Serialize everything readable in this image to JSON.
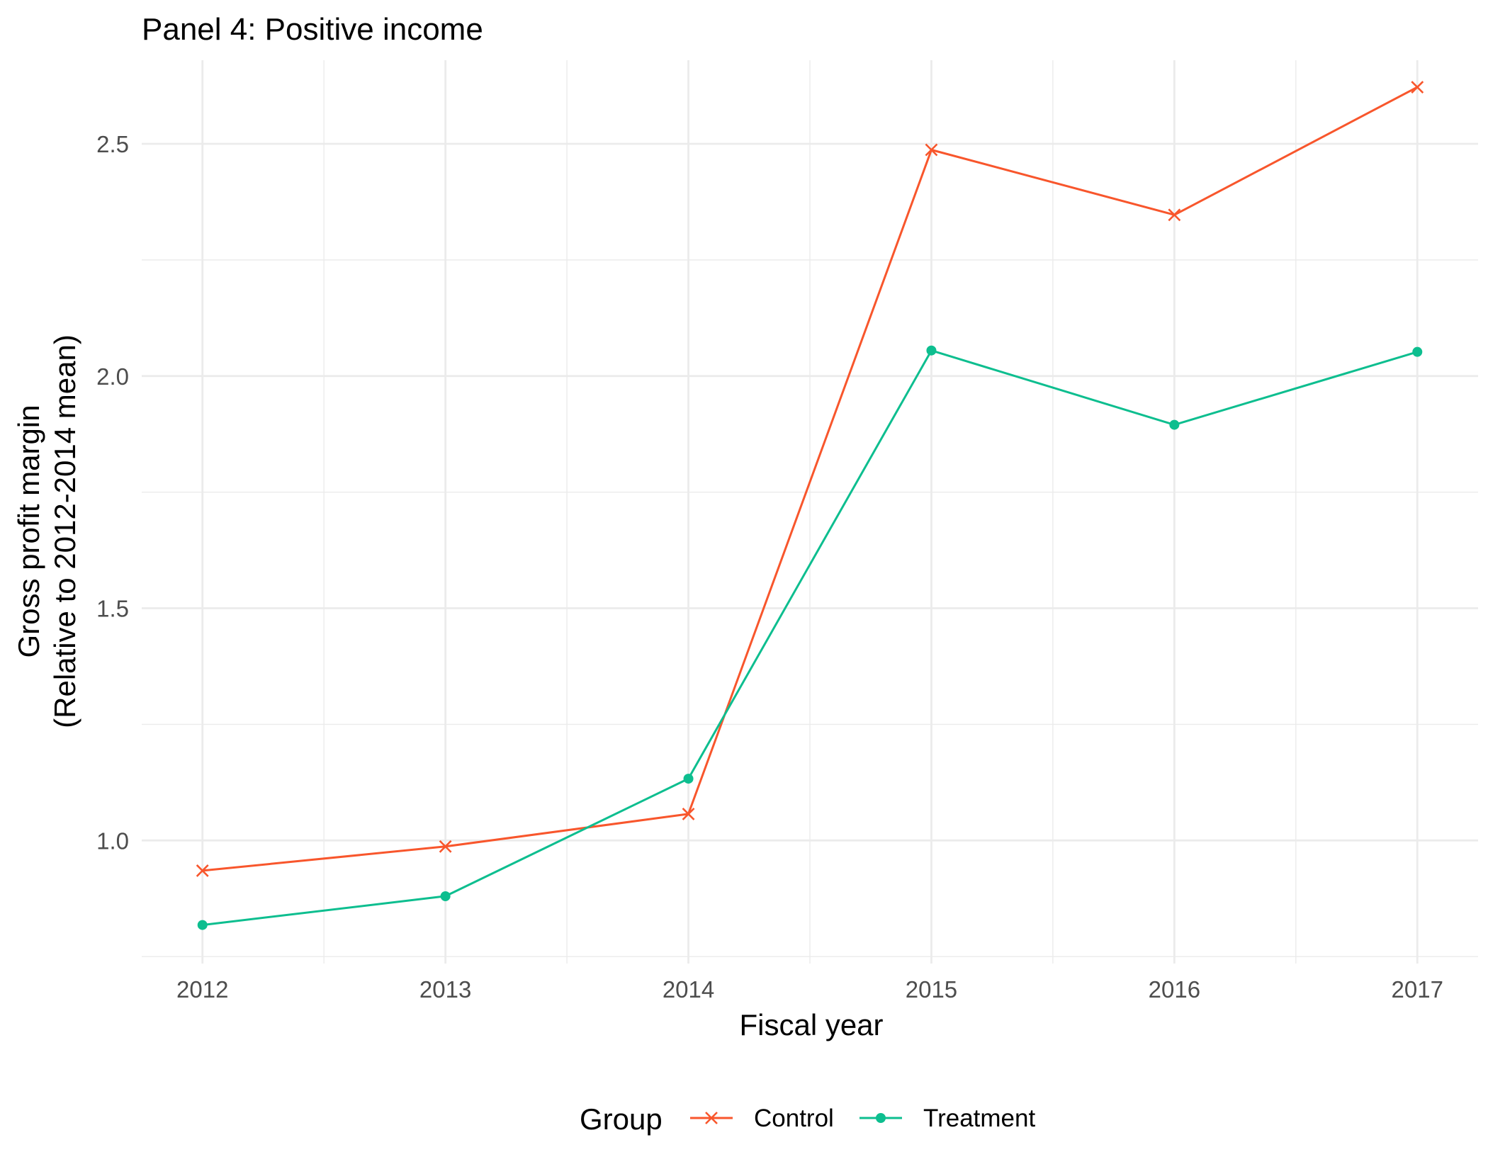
{
  "chart_data": {
    "type": "line",
    "title": "Panel 4: Positive income",
    "xlabel": "Fiscal year",
    "ylabel": [
      "Gross profit margin",
      "(Relative to 2012-2014 mean)"
    ],
    "x": [
      2012,
      2013,
      2014,
      2015,
      2016,
      2017
    ],
    "x_tick_labels": [
      "2012",
      "2013",
      "2014",
      "2015",
      "2016",
      "2017"
    ],
    "y_ticks": [
      1.0,
      1.5,
      2.0,
      2.5
    ],
    "y_tick_labels": [
      "1.0",
      "1.5",
      "2.0",
      "2.5"
    ],
    "ylim": [
      0.735,
      2.68
    ],
    "xlim": [
      2011.75,
      2017.25
    ],
    "grid": true,
    "legend": {
      "title": "Group",
      "placement": "bottom"
    },
    "series": [
      {
        "name": "Control",
        "color": "#F8562C",
        "marker": "x",
        "values": [
          0.935,
          0.987,
          1.057,
          2.487,
          2.347,
          2.622
        ]
      },
      {
        "name": "Treatment",
        "color": "#0DBE8F",
        "marker": "circle",
        "values": [
          0.818,
          0.88,
          1.133,
          2.055,
          1.895,
          2.052
        ]
      }
    ]
  }
}
